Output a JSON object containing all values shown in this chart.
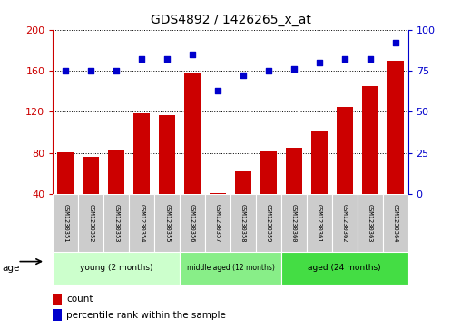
{
  "title": "GDS4892 / 1426265_x_at",
  "samples": [
    "GSM1230351",
    "GSM1230352",
    "GSM1230353",
    "GSM1230354",
    "GSM1230355",
    "GSM1230356",
    "GSM1230357",
    "GSM1230358",
    "GSM1230359",
    "GSM1230360",
    "GSM1230361",
    "GSM1230362",
    "GSM1230363",
    "GSM1230364"
  ],
  "counts": [
    81,
    76,
    83,
    119,
    117,
    158,
    41,
    62,
    82,
    85,
    102,
    125,
    145,
    170
  ],
  "percentiles": [
    75,
    75,
    75,
    82,
    82,
    85,
    63,
    72,
    75,
    76,
    80,
    82,
    82,
    92
  ],
  "ylim_left": [
    40,
    200
  ],
  "ylim_right": [
    0,
    100
  ],
  "yticks_left": [
    40,
    80,
    120,
    160,
    200
  ],
  "yticks_right": [
    0,
    25,
    50,
    75,
    100
  ],
  "groups": [
    {
      "label": "young (2 months)",
      "start": 0,
      "end": 5,
      "color": "#CCFFCC"
    },
    {
      "label": "middle aged (12 months)",
      "start": 5,
      "end": 9,
      "color": "#88EE88"
    },
    {
      "label": "aged (24 months)",
      "start": 9,
      "end": 14,
      "color": "#44DD44"
    }
  ],
  "bar_color": "#CC0000",
  "dot_color": "#0000CC",
  "cell_bg": "#CCCCCC",
  "legend_count_color": "#CC0000",
  "legend_pct_color": "#0000CC"
}
